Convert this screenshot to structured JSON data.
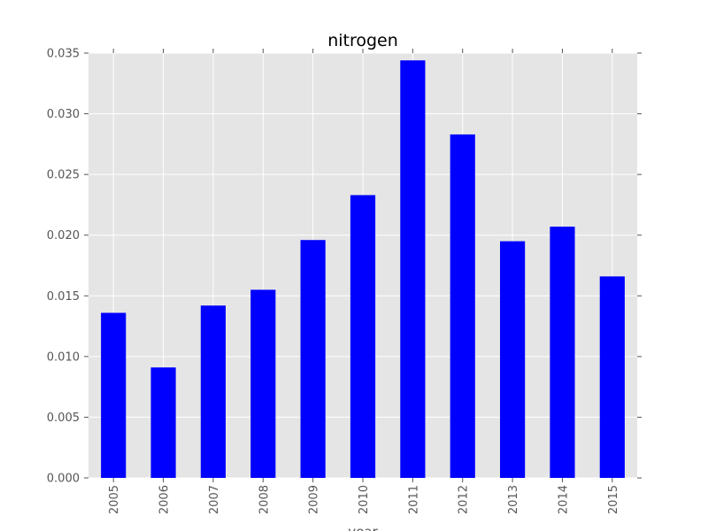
{
  "chart_data": {
    "type": "bar",
    "title": "nitrogen",
    "xlabel": "year",
    "ylabel": "",
    "categories": [
      "2005",
      "2006",
      "2007",
      "2008",
      "2009",
      "2010",
      "2011",
      "2012",
      "2013",
      "2014",
      "2015"
    ],
    "values": [
      0.0136,
      0.0091,
      0.0142,
      0.0155,
      0.0196,
      0.0233,
      0.0344,
      0.0283,
      0.0195,
      0.0207,
      0.0166
    ],
    "ylim": [
      0,
      0.035
    ],
    "yticks": [
      "0.000",
      "0.005",
      "0.010",
      "0.015",
      "0.020",
      "0.025",
      "0.030",
      "0.035"
    ],
    "grid": true,
    "legend": "none",
    "colors": {
      "bar": "#0000ff",
      "plot_background": "#e5e5e5",
      "grid": "#ffffff",
      "tick_text": "#555555"
    }
  }
}
